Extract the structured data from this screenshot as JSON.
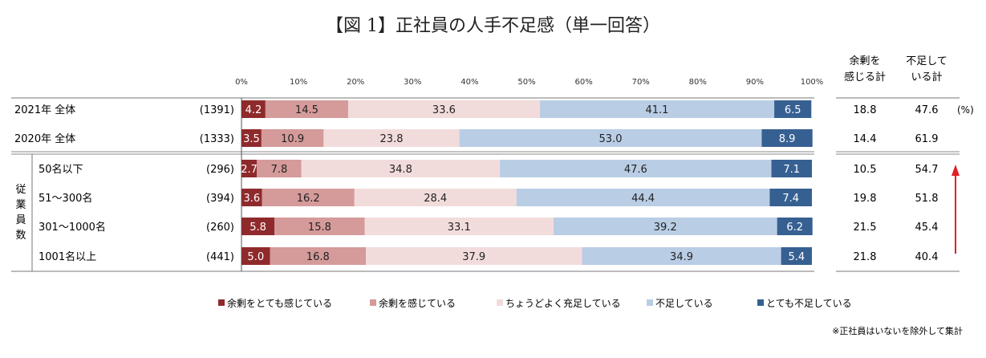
{
  "title": "【図 1】正社員の人手不足感（単一回答）",
  "note": "※正社員はいないを除外して集計",
  "percent_unit": "(%)",
  "side_label": "従業員数",
  "columns": {
    "surplus_total": "余剰を\n感じる計",
    "shortage_total": "不足して\nいる計"
  },
  "colors": {
    "very_surplus": "#8f2a2c",
    "surplus": "#d59a9a",
    "adequate": "#f2dcdb",
    "shortage": "#b9cde5",
    "very_shortage": "#376092",
    "arrow": "#e31e24"
  },
  "chart_data": {
    "type": "bar",
    "orientation": "horizontal",
    "stacked": true,
    "title": "【図 1】正社員の人手不足感（単一回答）",
    "xlim": [
      0,
      100
    ],
    "x_ticks": [
      "0%",
      "10%",
      "20%",
      "30%",
      "40%",
      "50%",
      "60%",
      "70%",
      "80%",
      "90%",
      "100%"
    ],
    "legend_position": "bottom",
    "series": [
      {
        "name": "余剰をとても感じている",
        "key": "very_surplus"
      },
      {
        "name": "余剰を感じている",
        "key": "surplus"
      },
      {
        "name": "ちょうどよく充足している",
        "key": "adequate"
      },
      {
        "name": "不足している",
        "key": "shortage"
      },
      {
        "name": "とても不足している",
        "key": "very_shortage"
      }
    ],
    "rows": [
      {
        "label": "2021年 全体",
        "n": "(1391)",
        "values": [
          4.2,
          14.5,
          33.6,
          41.1,
          6.5
        ],
        "surplus_total": "18.8",
        "shortage_total": "47.6"
      },
      {
        "label": "2020年 全体",
        "n": "(1333)",
        "values": [
          3.5,
          10.9,
          23.8,
          53.0,
          8.9
        ],
        "surplus_total": "14.4",
        "shortage_total": "61.9"
      },
      {
        "label": "50名以下",
        "n": "(296)",
        "values": [
          2.7,
          7.8,
          34.8,
          47.6,
          7.1
        ],
        "surplus_total": "10.5",
        "shortage_total": "54.7"
      },
      {
        "label": "51～300名",
        "n": "(394)",
        "values": [
          3.6,
          16.2,
          28.4,
          44.4,
          7.4
        ],
        "surplus_total": "19.8",
        "shortage_total": "51.8"
      },
      {
        "label": "301～1000名",
        "n": "(260)",
        "values": [
          5.8,
          15.8,
          33.1,
          39.2,
          6.2
        ],
        "surplus_total": "21.5",
        "shortage_total": "45.4"
      },
      {
        "label": "1001名以上",
        "n": "(441)",
        "values": [
          5.0,
          16.8,
          37.9,
          34.9,
          5.4
        ],
        "surplus_total": "21.8",
        "shortage_total": "40.4"
      }
    ]
  }
}
